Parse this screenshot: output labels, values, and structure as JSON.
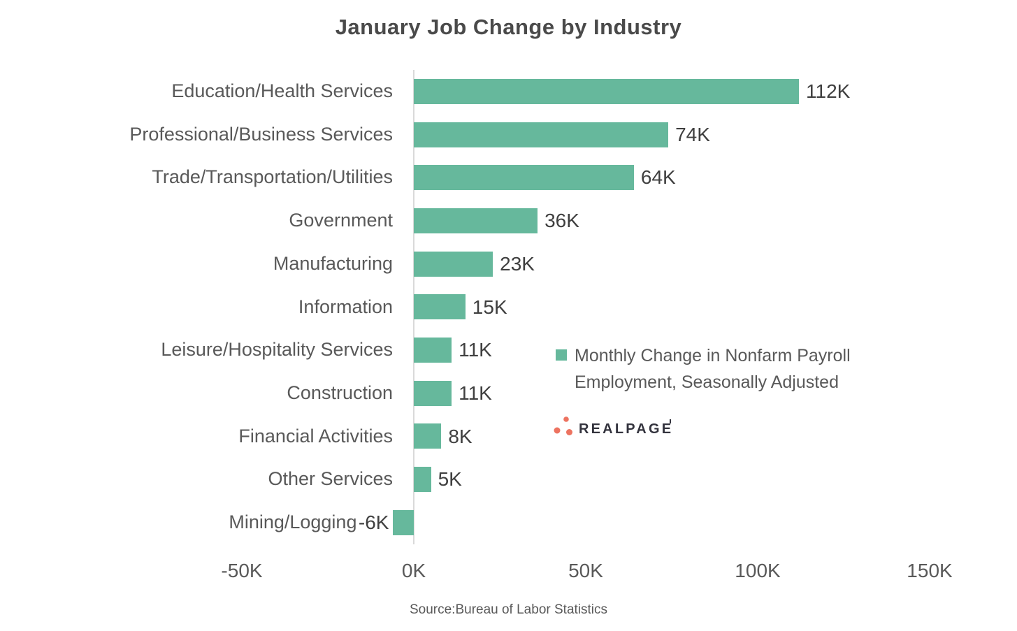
{
  "title": "January Job Change by Industry",
  "source_note": "Source:Bureau of Labor Statistics",
  "legend": {
    "label": "Monthly Change in Nonfarm Payroll Employment, Seasonally Adjusted"
  },
  "logo": {
    "name": "RealPage",
    "wordmark": "REALPAGE"
  },
  "colors": {
    "bar": "#66B89C",
    "title_text": "#4a4a4a",
    "axis_text": "#595959",
    "data_label_text": "#3f3f3f",
    "axis_line": "#d9d9d9",
    "logo_dots": "#ED7360",
    "logo_text": "#33333D"
  },
  "chart_data": {
    "type": "bar",
    "orientation": "horizontal",
    "title": "January Job Change by Industry",
    "categories": [
      "Education/Health Services",
      "Professional/Business Services",
      "Trade/Transportation/Utilities",
      "Government",
      "Manufacturing",
      "Information",
      "Leisure/Hospitality Services",
      "Construction",
      "Financial Activities",
      "Other Services",
      "Mining/Logging"
    ],
    "values_thousands": [
      112,
      74,
      64,
      36,
      23,
      15,
      11,
      11,
      8,
      5,
      -6
    ],
    "data_labels": [
      "112K",
      "74K",
      "64K",
      "36K",
      "23K",
      "15K",
      "11K",
      "11K",
      "8K",
      "5K",
      "-6K"
    ],
    "x_ticks": [
      {
        "label": "-50K",
        "value": -50
      },
      {
        "label": "0K",
        "value": 0
      },
      {
        "label": "50K",
        "value": 50
      },
      {
        "label": "100K",
        "value": 100
      },
      {
        "label": "150K",
        "value": 150
      }
    ],
    "xlim_thousands": [
      -50,
      175
    ],
    "unit": "K (thousands of jobs)",
    "grid": false,
    "legend_position": "center-right",
    "legend_entries": [
      "Monthly Change in Nonfarm Payroll Employment, Seasonally Adjusted"
    ]
  }
}
